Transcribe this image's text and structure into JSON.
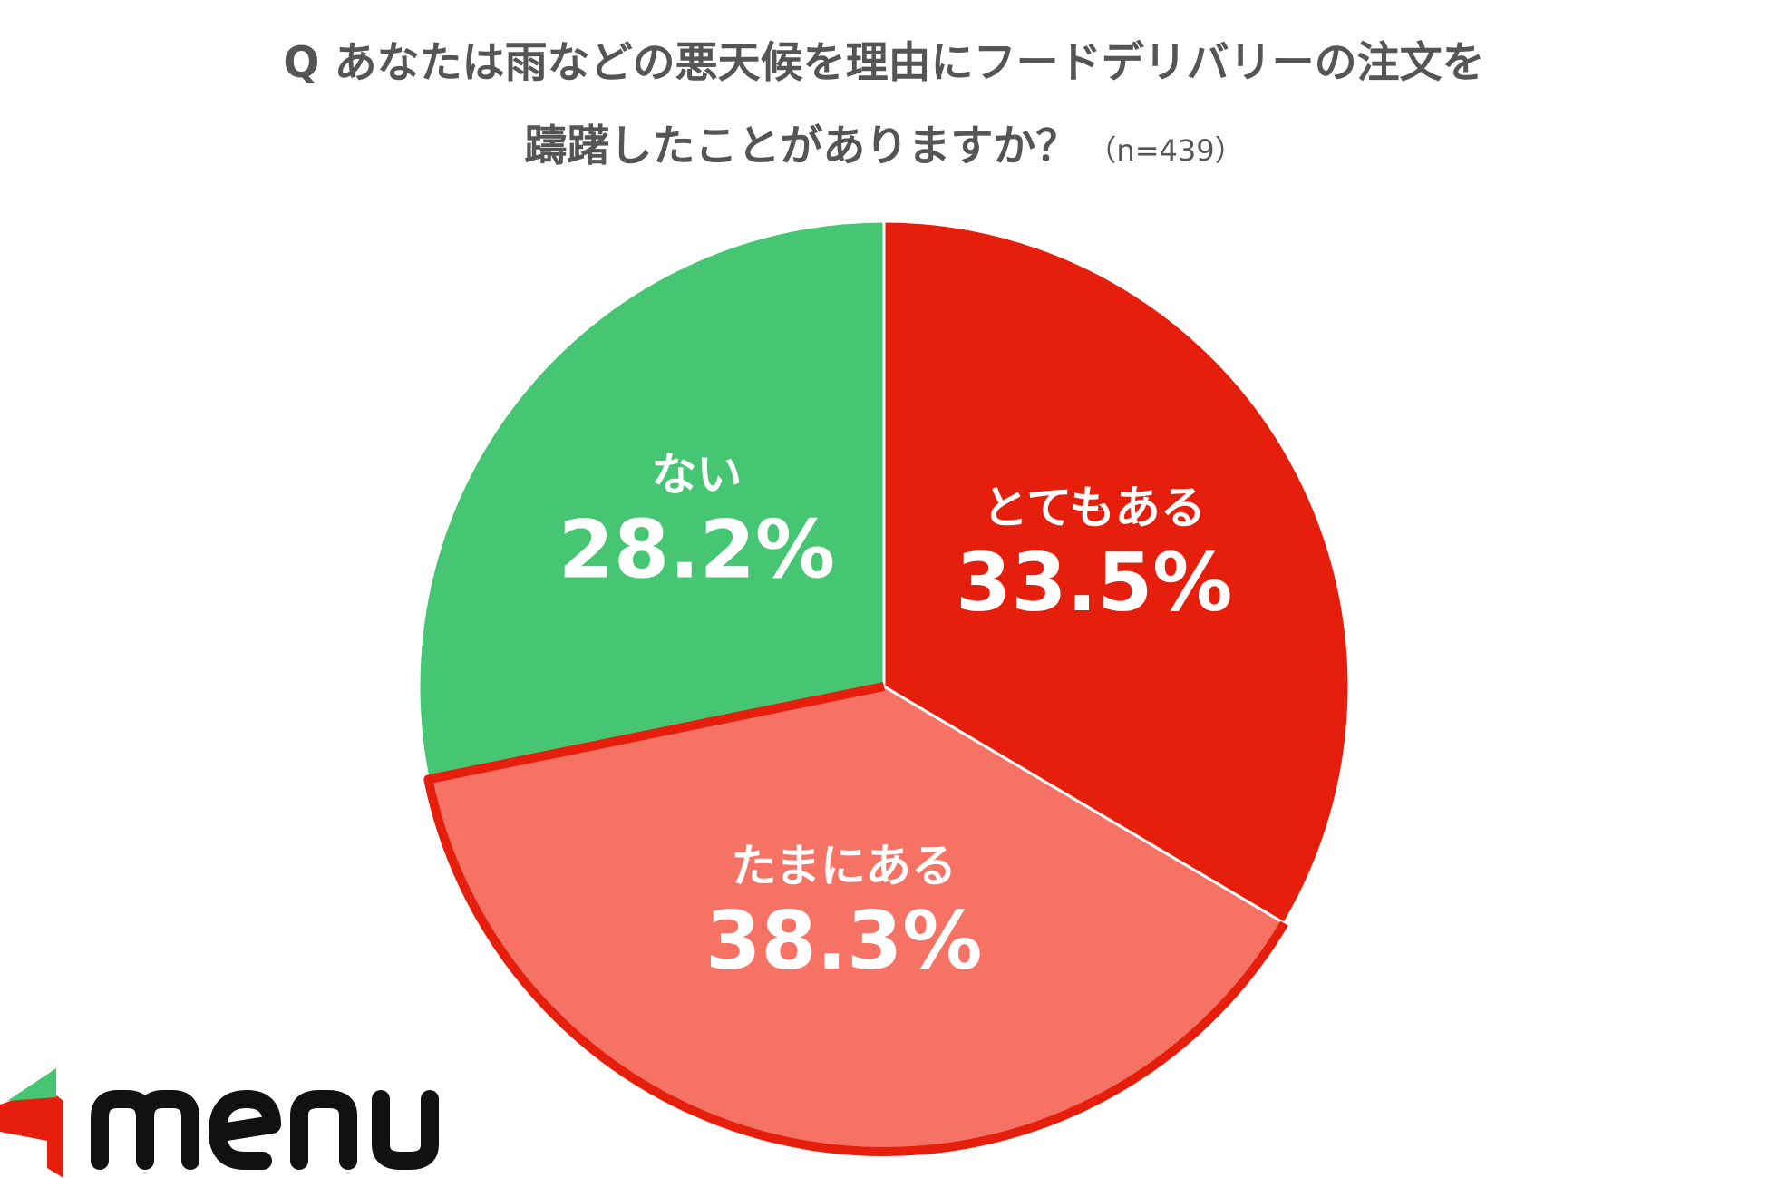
{
  "title": {
    "line1": "Q あなたは雨などの悪天候を理由にフードデリバリーの注文を",
    "line2": "躊躇したことがありますか？",
    "n_label": "（n=439）"
  },
  "chart_data": {
    "type": "pie",
    "title": "Q あなたは雨などの悪天候を理由にフードデリバリーの注文を躊躇したことがありますか？",
    "sample_size": "n=439",
    "slices": [
      {
        "label": "とてもある",
        "value": 33.5,
        "value_label": "33.5%",
        "color": "#E61E0C"
      },
      {
        "label": "たまにある",
        "value": 38.3,
        "value_label": "38.3%",
        "color": "#F57265"
      },
      {
        "label": "ない",
        "value": 28.2,
        "value_label": "28.2%",
        "color": "#46C572"
      }
    ],
    "start": "12 o'clock",
    "direction": "clockwise",
    "legend": "none"
  },
  "brand": {
    "logo_text": "menu",
    "colors": {
      "red": "#E61E0C",
      "green": "#46C572",
      "black": "#111111"
    }
  }
}
